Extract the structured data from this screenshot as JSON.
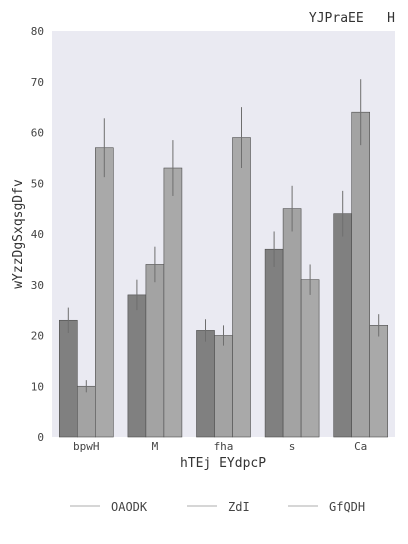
{
  "chart_data": {
    "type": "bar",
    "title": "YJPraEE   H",
    "xlabel": "hTEj EYdpcP",
    "ylabel": "wYzzDgSxqsgDfv",
    "categories": [
      "bpwH",
      "M",
      "fha",
      "s",
      "Ca"
    ],
    "ylim": [
      0,
      80
    ],
    "yticks": [
      0,
      10,
      20,
      30,
      40,
      50,
      60,
      70,
      80
    ],
    "grid": false,
    "legend_position": "bottom",
    "series": [
      {
        "name": "OAODK",
        "color": "#808080",
        "values": [
          23,
          28,
          21,
          37,
          44
        ],
        "errors": [
          2.5,
          3.0,
          2.2,
          3.5,
          4.5
        ]
      },
      {
        "name": "ZdI",
        "color": "#a3a3a3",
        "values": [
          10,
          34,
          20,
          45,
          64
        ],
        "errors": [
          1.2,
          3.5,
          2.0,
          4.5,
          6.5
        ]
      },
      {
        "name": "GfQDH",
        "color": "#a9a9a9",
        "values": [
          57,
          53,
          59,
          31,
          22
        ],
        "errors": [
          5.8,
          5.5,
          6.0,
          3.0,
          2.2
        ]
      }
    ]
  }
}
